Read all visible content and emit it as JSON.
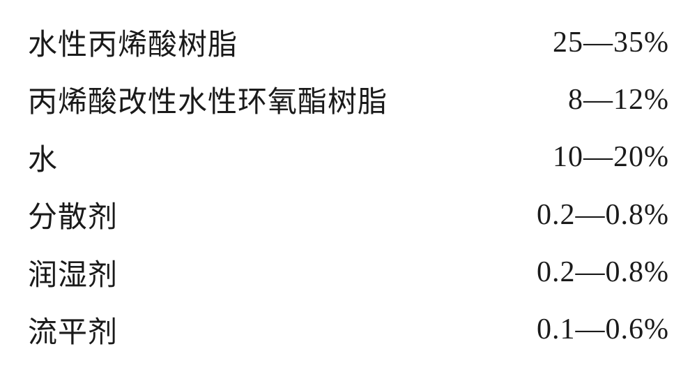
{
  "composition": {
    "type": "table",
    "background_color": "#ffffff",
    "text_color": "#1a1a1a",
    "font_size_pt": 32,
    "font_family": "SimSun",
    "rows": [
      {
        "label": "水性丙烯酸树脂",
        "value": "25—35%"
      },
      {
        "label": "丙烯酸改性水性环氧酯树脂",
        "value": "8—12%"
      },
      {
        "label": "水",
        "value": "10—20%"
      },
      {
        "label": "分散剂",
        "value": "0.2—0.8%"
      },
      {
        "label": "润湿剂",
        "value": "0.2—0.8%"
      },
      {
        "label": "流平剂",
        "value": "0.1—0.6%"
      }
    ]
  }
}
